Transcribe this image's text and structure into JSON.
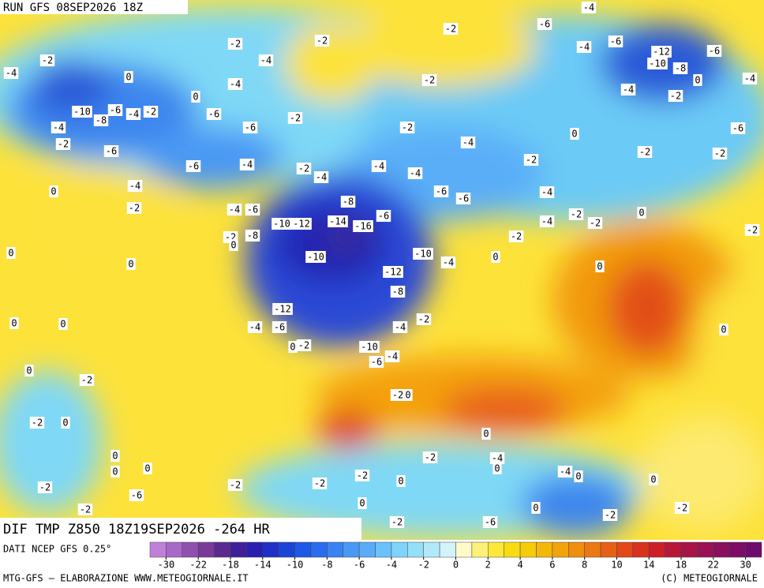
{
  "header": {
    "title": "RUN GFS 08SEP2026 18Z"
  },
  "map": {
    "label": "DIF TMP Z850 18Z19SEP2026 -264 HR",
    "contour_labels": [
      -4,
      -6,
      -2,
      -2,
      -2,
      -4,
      -2,
      -4,
      0,
      -4,
      0,
      -2,
      -4,
      -6,
      -12,
      -6,
      -10,
      -8,
      0,
      -4,
      -4,
      -2,
      -10,
      -6,
      -8,
      -4,
      -2,
      -6,
      -2,
      -4,
      -6,
      -2,
      -6,
      0,
      -4,
      -2,
      -6,
      -2,
      -2,
      -2,
      -6,
      -4,
      -2,
      -4,
      -4,
      -4,
      -4,
      0,
      -6,
      -6,
      -4,
      -8,
      -4,
      -6,
      -2,
      -6,
      0,
      -2,
      -2,
      -4,
      -10,
      -12,
      -14,
      -16,
      -2,
      -8,
      0,
      -2,
      -2,
      0,
      0,
      -10,
      -10,
      -4,
      0,
      0,
      -12,
      -8,
      -12,
      -2,
      -4,
      -6,
      -4,
      0,
      0,
      0,
      0,
      -2,
      -10,
      -4,
      -6,
      0,
      -2,
      -2,
      0,
      -2,
      0,
      0,
      0,
      -2,
      -4,
      0,
      0,
      0,
      -4,
      0,
      -2,
      -2,
      0,
      0,
      -2,
      -2,
      -6,
      0,
      -2,
      0,
      -2,
      -2,
      -2,
      -6
    ]
  },
  "legend": {
    "source": "DATI NCEP GFS 0.25°",
    "colors": [
      "#c080d8",
      "#a868c8",
      "#9050b0",
      "#783c98",
      "#5a2a90",
      "#40209a",
      "#2a20b0",
      "#1e30c8",
      "#1a44d8",
      "#1e58e6",
      "#2a6cee",
      "#3a82f2",
      "#4a98f6",
      "#5aacf8",
      "#6ac2fa",
      "#7ed4fa",
      "#94e0f8",
      "#b0eaf8",
      "#d2f4fa",
      "#fffac8",
      "#fff078",
      "#fde83a",
      "#f8dc10",
      "#f6cc08",
      "#f4b808",
      "#f2a40a",
      "#f08e0e",
      "#ec7812",
      "#e86016",
      "#e2481a",
      "#d8321e",
      "#cc2028",
      "#b81838",
      "#a81446",
      "#981254",
      "#8a105e",
      "#7c0e66",
      "#6e0c6c"
    ],
    "ticks": [
      -30,
      -22,
      -18,
      -14,
      -10,
      -8,
      -6,
      -4,
      -2,
      0,
      2,
      4,
      6,
      8,
      10,
      14,
      18,
      22,
      30
    ]
  },
  "footer": {
    "left": "MTG-GFS — ELABORAZIONE WWW.METEOGIORNALE.IT",
    "right": "(C) METEOGIORNALE"
  }
}
